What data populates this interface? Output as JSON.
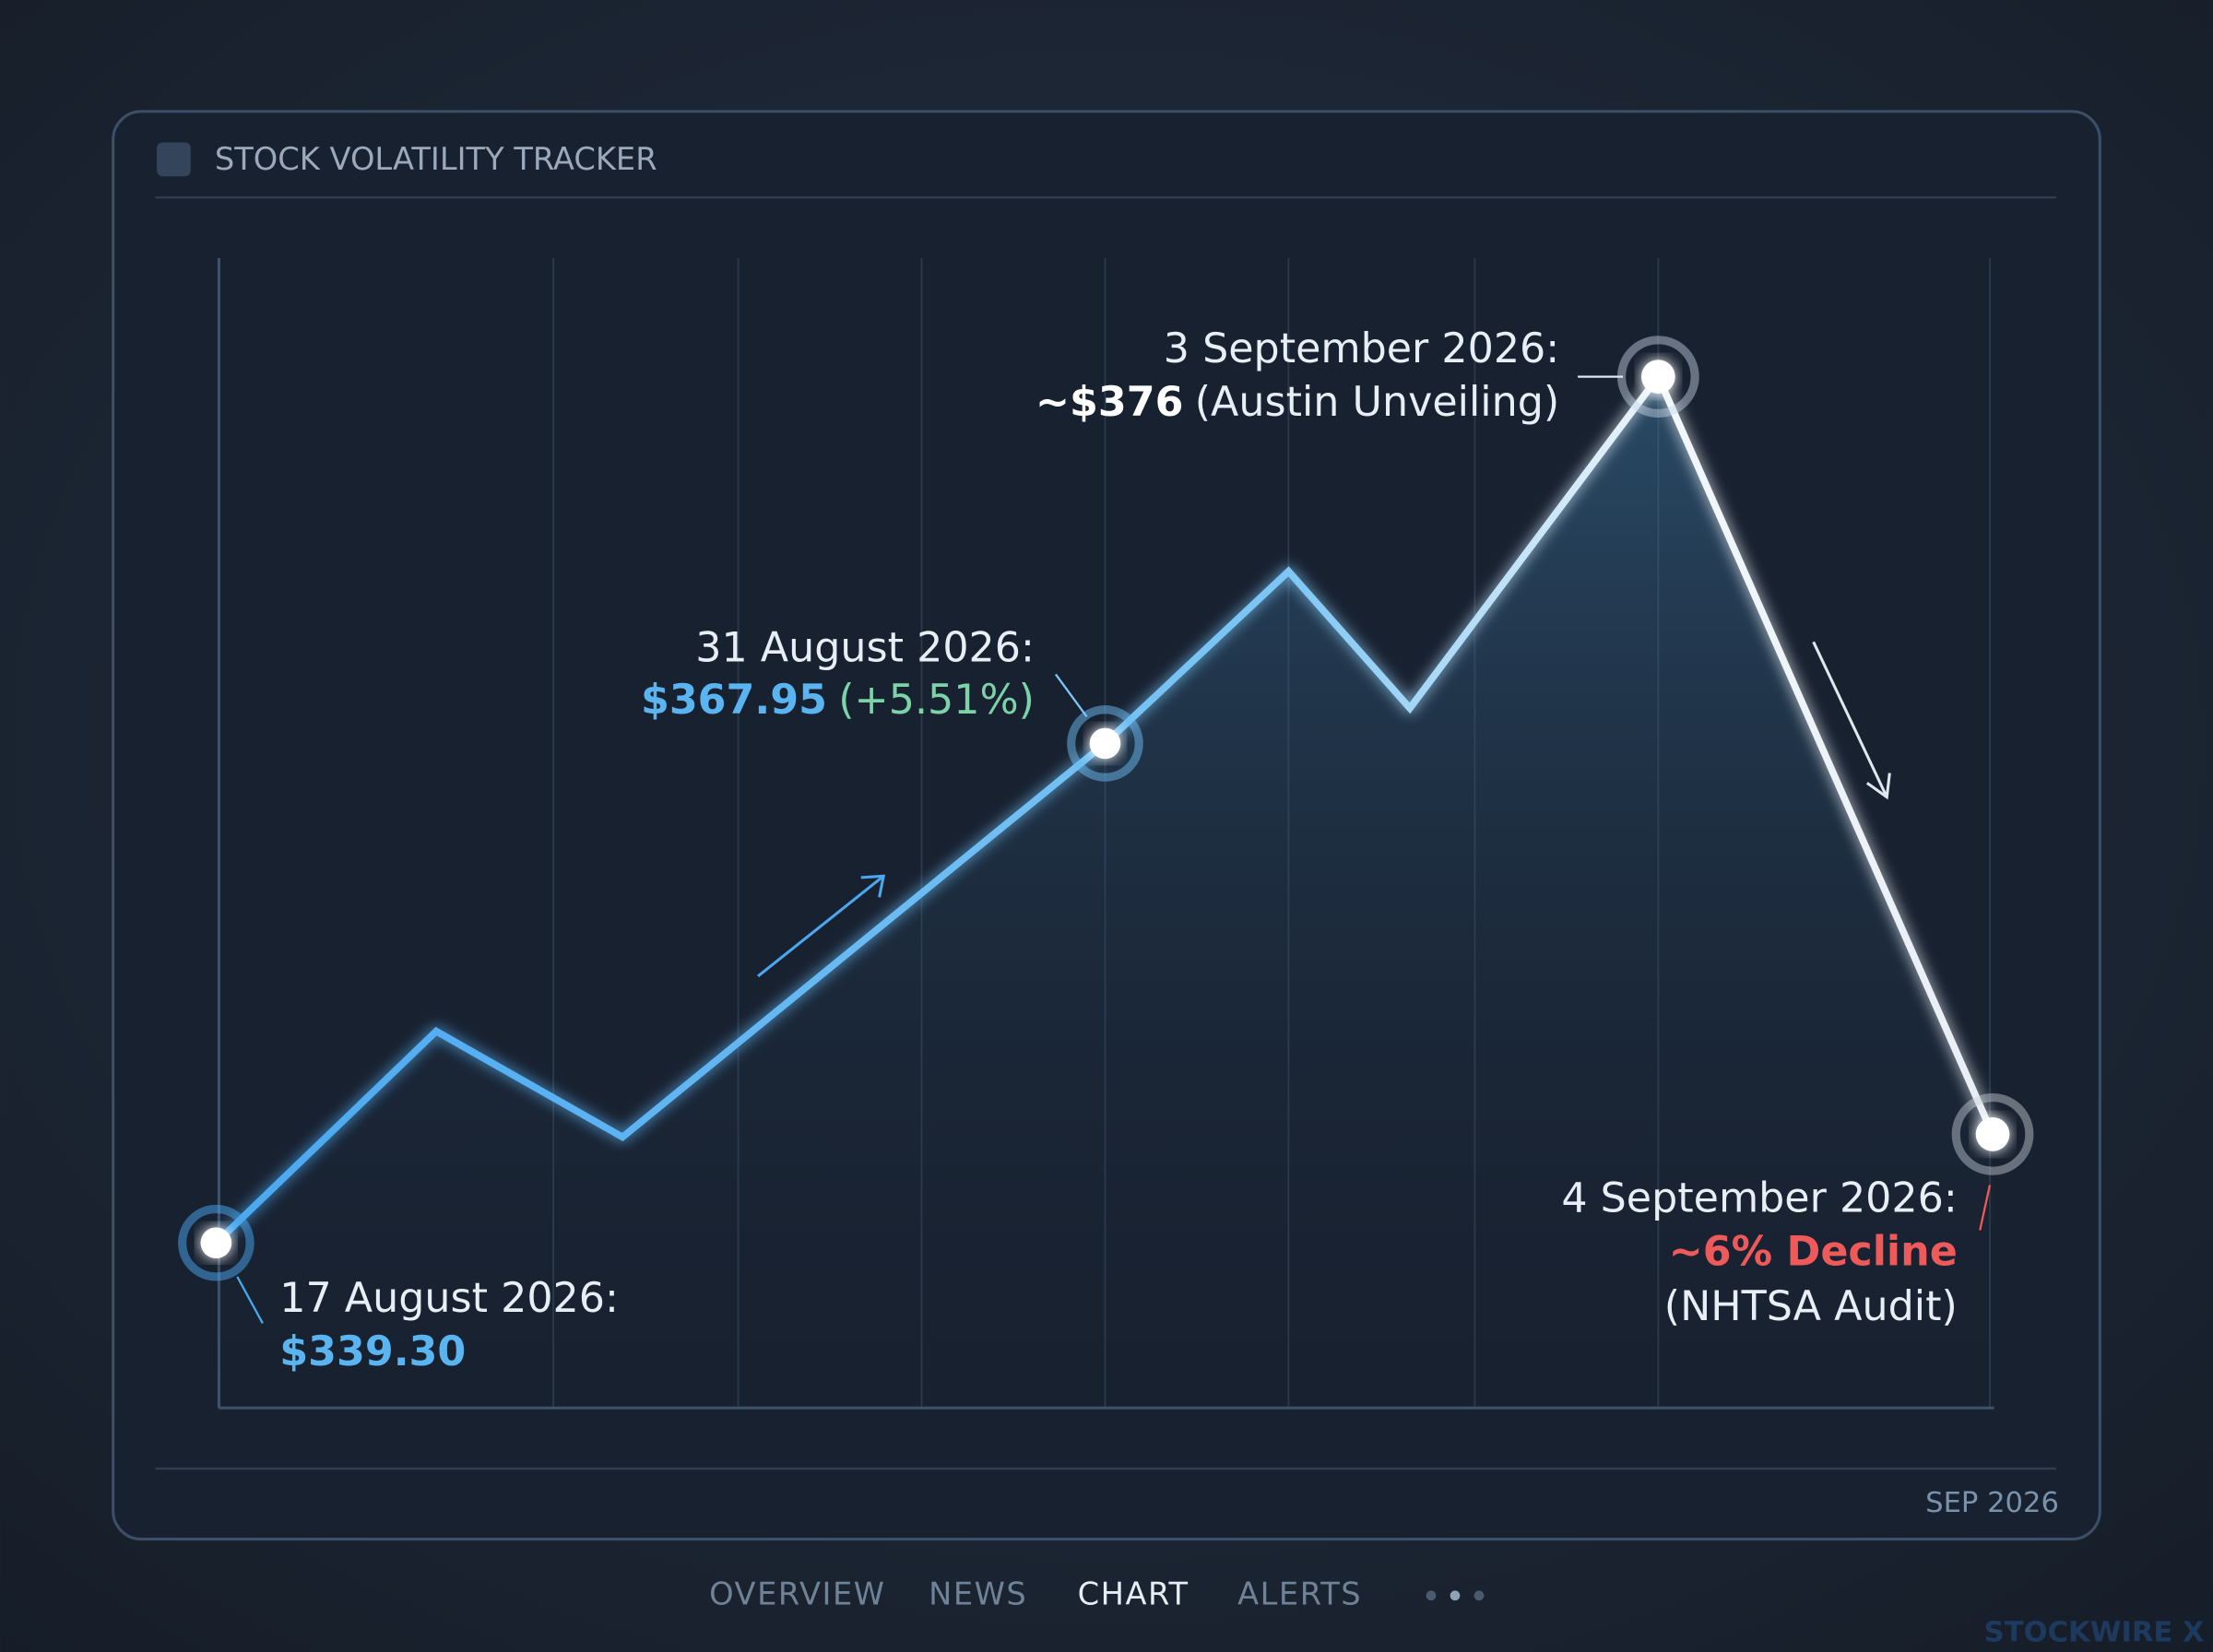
{
  "window": {
    "title": "STOCK VOLATILITY TRACKER",
    "footer_label": "SEP 2026"
  },
  "annotations": [
    {
      "date": "17 August 2026:",
      "price": "$339.30"
    },
    {
      "date": "31 August 2026:",
      "price": "$367.95",
      "change": "(+5.51%)"
    },
    {
      "date": "3 September 2026:",
      "price": "~$376",
      "note": "(Austin Unveiling)"
    },
    {
      "date": "4 September 2026:",
      "change": "~6% Decline",
      "note": "(NHTSA Audit)"
    }
  ],
  "tabs": [
    "OVERVIEW",
    "NEWS",
    "CHART",
    "ALERTS"
  ],
  "brand": "STOCKWIRE X"
}
